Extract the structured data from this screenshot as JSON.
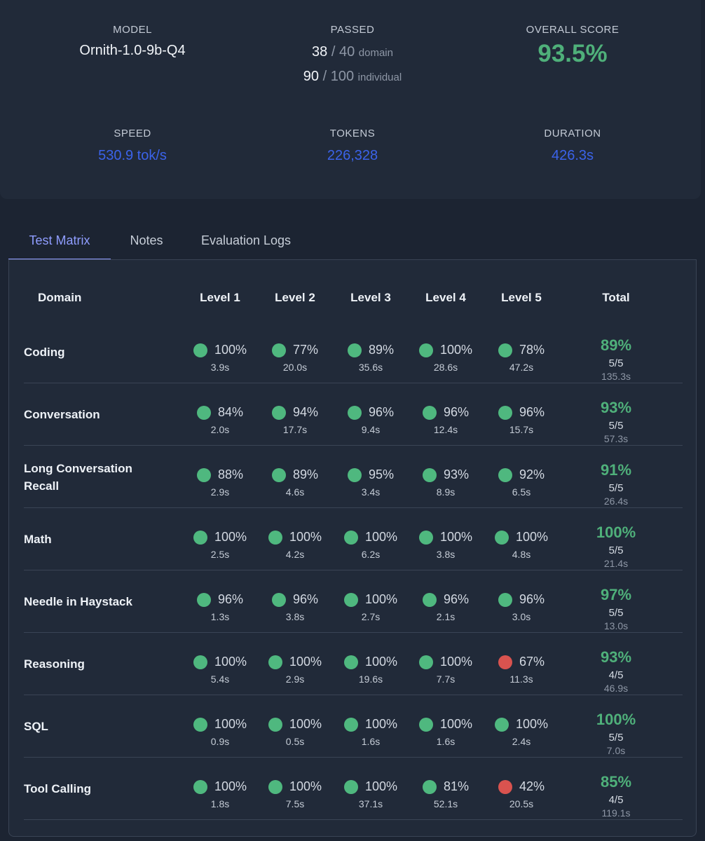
{
  "summary": {
    "model": {
      "label": "MODEL",
      "value": "Ornith-1.0-9b-Q4"
    },
    "passed": {
      "label": "PASSED",
      "domain_passed": "38",
      "domain_total": "40",
      "domain_unit": "domain",
      "indiv_passed": "90",
      "indiv_total": "100",
      "indiv_unit": "individual",
      "sep": "/"
    },
    "overall": {
      "label": "OVERALL SCORE",
      "value": "93.5%"
    },
    "speed": {
      "label": "SPEED",
      "value": "530.9 tok/s"
    },
    "tokens": {
      "label": "TOKENS",
      "value": "226,328"
    },
    "duration": {
      "label": "DURATION",
      "value": "426.3s"
    }
  },
  "tabs": [
    {
      "label": "Test Matrix",
      "active": true
    },
    {
      "label": "Notes",
      "active": false
    },
    {
      "label": "Evaluation Logs",
      "active": false
    }
  ],
  "matrix": {
    "headers": {
      "domain": "Domain",
      "levels": [
        "Level 1",
        "Level 2",
        "Level 3",
        "Level 4",
        "Level 5"
      ],
      "total": "Total"
    },
    "colors": {
      "pass": "#4fb87f",
      "fail": "#d9534f"
    },
    "rows": [
      {
        "domain": "Coding",
        "cells": [
          {
            "pct": "100%",
            "time": "3.9s",
            "status": "pass"
          },
          {
            "pct": "77%",
            "time": "20.0s",
            "status": "pass"
          },
          {
            "pct": "89%",
            "time": "35.6s",
            "status": "pass"
          },
          {
            "pct": "100%",
            "time": "28.6s",
            "status": "pass"
          },
          {
            "pct": "78%",
            "time": "47.2s",
            "status": "pass"
          }
        ],
        "total": {
          "pct": "89%",
          "frac": "5/5",
          "time": "135.3s"
        }
      },
      {
        "domain": "Conversation",
        "cells": [
          {
            "pct": "84%",
            "time": "2.0s",
            "status": "pass"
          },
          {
            "pct": "94%",
            "time": "17.7s",
            "status": "pass"
          },
          {
            "pct": "96%",
            "time": "9.4s",
            "status": "pass"
          },
          {
            "pct": "96%",
            "time": "12.4s",
            "status": "pass"
          },
          {
            "pct": "96%",
            "time": "15.7s",
            "status": "pass"
          }
        ],
        "total": {
          "pct": "93%",
          "frac": "5/5",
          "time": "57.3s"
        }
      },
      {
        "domain": "Long Conversation Recall",
        "cells": [
          {
            "pct": "88%",
            "time": "2.9s",
            "status": "pass"
          },
          {
            "pct": "89%",
            "time": "4.6s",
            "status": "pass"
          },
          {
            "pct": "95%",
            "time": "3.4s",
            "status": "pass"
          },
          {
            "pct": "93%",
            "time": "8.9s",
            "status": "pass"
          },
          {
            "pct": "92%",
            "time": "6.5s",
            "status": "pass"
          }
        ],
        "total": {
          "pct": "91%",
          "frac": "5/5",
          "time": "26.4s"
        }
      },
      {
        "domain": "Math",
        "cells": [
          {
            "pct": "100%",
            "time": "2.5s",
            "status": "pass"
          },
          {
            "pct": "100%",
            "time": "4.2s",
            "status": "pass"
          },
          {
            "pct": "100%",
            "time": "6.2s",
            "status": "pass"
          },
          {
            "pct": "100%",
            "time": "3.8s",
            "status": "pass"
          },
          {
            "pct": "100%",
            "time": "4.8s",
            "status": "pass"
          }
        ],
        "total": {
          "pct": "100%",
          "frac": "5/5",
          "time": "21.4s"
        }
      },
      {
        "domain": "Needle in Haystack",
        "cells": [
          {
            "pct": "96%",
            "time": "1.3s",
            "status": "pass"
          },
          {
            "pct": "96%",
            "time": "3.8s",
            "status": "pass"
          },
          {
            "pct": "100%",
            "time": "2.7s",
            "status": "pass"
          },
          {
            "pct": "96%",
            "time": "2.1s",
            "status": "pass"
          },
          {
            "pct": "96%",
            "time": "3.0s",
            "status": "pass"
          }
        ],
        "total": {
          "pct": "97%",
          "frac": "5/5",
          "time": "13.0s"
        }
      },
      {
        "domain": "Reasoning",
        "cells": [
          {
            "pct": "100%",
            "time": "5.4s",
            "status": "pass"
          },
          {
            "pct": "100%",
            "time": "2.9s",
            "status": "pass"
          },
          {
            "pct": "100%",
            "time": "19.6s",
            "status": "pass"
          },
          {
            "pct": "100%",
            "time": "7.7s",
            "status": "pass"
          },
          {
            "pct": "67%",
            "time": "11.3s",
            "status": "fail"
          }
        ],
        "total": {
          "pct": "93%",
          "frac": "4/5",
          "time": "46.9s"
        }
      },
      {
        "domain": "SQL",
        "cells": [
          {
            "pct": "100%",
            "time": "0.9s",
            "status": "pass"
          },
          {
            "pct": "100%",
            "time": "0.5s",
            "status": "pass"
          },
          {
            "pct": "100%",
            "time": "1.6s",
            "status": "pass"
          },
          {
            "pct": "100%",
            "time": "1.6s",
            "status": "pass"
          },
          {
            "pct": "100%",
            "time": "2.4s",
            "status": "pass"
          }
        ],
        "total": {
          "pct": "100%",
          "frac": "5/5",
          "time": "7.0s"
        }
      },
      {
        "domain": "Tool Calling",
        "cells": [
          {
            "pct": "100%",
            "time": "1.8s",
            "status": "pass"
          },
          {
            "pct": "100%",
            "time": "7.5s",
            "status": "pass"
          },
          {
            "pct": "100%",
            "time": "37.1s",
            "status": "pass"
          },
          {
            "pct": "81%",
            "time": "52.1s",
            "status": "pass"
          },
          {
            "pct": "42%",
            "time": "20.5s",
            "status": "fail"
          }
        ],
        "total": {
          "pct": "85%",
          "frac": "4/5",
          "time": "119.1s"
        }
      }
    ]
  }
}
